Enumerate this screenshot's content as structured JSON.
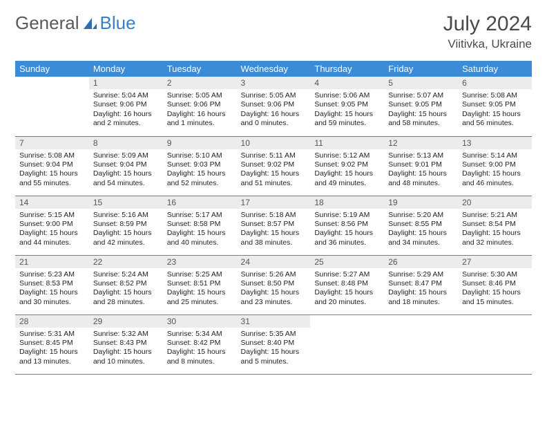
{
  "brand": {
    "part1": "General",
    "part2": "Blue"
  },
  "title": "July 2024",
  "location": "Viitivka, Ukraine",
  "colors": {
    "header_bg": "#3a8bd8",
    "header_fg": "#ffffff",
    "daynum_bg": "#ececec",
    "border": "#3a8bd8",
    "brand_gray": "#5a5a5a",
    "brand_blue": "#3a7fc4"
  },
  "weekdays": [
    "Sunday",
    "Monday",
    "Tuesday",
    "Wednesday",
    "Thursday",
    "Friday",
    "Saturday"
  ],
  "weeks": [
    [
      {
        "blank": true
      },
      {
        "day": "1",
        "sunrise": "Sunrise: 5:04 AM",
        "sunset": "Sunset: 9:06 PM",
        "dl1": "Daylight: 16 hours",
        "dl2": "and 2 minutes."
      },
      {
        "day": "2",
        "sunrise": "Sunrise: 5:05 AM",
        "sunset": "Sunset: 9:06 PM",
        "dl1": "Daylight: 16 hours",
        "dl2": "and 1 minutes."
      },
      {
        "day": "3",
        "sunrise": "Sunrise: 5:05 AM",
        "sunset": "Sunset: 9:06 PM",
        "dl1": "Daylight: 16 hours",
        "dl2": "and 0 minutes."
      },
      {
        "day": "4",
        "sunrise": "Sunrise: 5:06 AM",
        "sunset": "Sunset: 9:05 PM",
        "dl1": "Daylight: 15 hours",
        "dl2": "and 59 minutes."
      },
      {
        "day": "5",
        "sunrise": "Sunrise: 5:07 AM",
        "sunset": "Sunset: 9:05 PM",
        "dl1": "Daylight: 15 hours",
        "dl2": "and 58 minutes."
      },
      {
        "day": "6",
        "sunrise": "Sunrise: 5:08 AM",
        "sunset": "Sunset: 9:05 PM",
        "dl1": "Daylight: 15 hours",
        "dl2": "and 56 minutes."
      }
    ],
    [
      {
        "day": "7",
        "sunrise": "Sunrise: 5:08 AM",
        "sunset": "Sunset: 9:04 PM",
        "dl1": "Daylight: 15 hours",
        "dl2": "and 55 minutes."
      },
      {
        "day": "8",
        "sunrise": "Sunrise: 5:09 AM",
        "sunset": "Sunset: 9:04 PM",
        "dl1": "Daylight: 15 hours",
        "dl2": "and 54 minutes."
      },
      {
        "day": "9",
        "sunrise": "Sunrise: 5:10 AM",
        "sunset": "Sunset: 9:03 PM",
        "dl1": "Daylight: 15 hours",
        "dl2": "and 52 minutes."
      },
      {
        "day": "10",
        "sunrise": "Sunrise: 5:11 AM",
        "sunset": "Sunset: 9:02 PM",
        "dl1": "Daylight: 15 hours",
        "dl2": "and 51 minutes."
      },
      {
        "day": "11",
        "sunrise": "Sunrise: 5:12 AM",
        "sunset": "Sunset: 9:02 PM",
        "dl1": "Daylight: 15 hours",
        "dl2": "and 49 minutes."
      },
      {
        "day": "12",
        "sunrise": "Sunrise: 5:13 AM",
        "sunset": "Sunset: 9:01 PM",
        "dl1": "Daylight: 15 hours",
        "dl2": "and 48 minutes."
      },
      {
        "day": "13",
        "sunrise": "Sunrise: 5:14 AM",
        "sunset": "Sunset: 9:00 PM",
        "dl1": "Daylight: 15 hours",
        "dl2": "and 46 minutes."
      }
    ],
    [
      {
        "day": "14",
        "sunrise": "Sunrise: 5:15 AM",
        "sunset": "Sunset: 9:00 PM",
        "dl1": "Daylight: 15 hours",
        "dl2": "and 44 minutes."
      },
      {
        "day": "15",
        "sunrise": "Sunrise: 5:16 AM",
        "sunset": "Sunset: 8:59 PM",
        "dl1": "Daylight: 15 hours",
        "dl2": "and 42 minutes."
      },
      {
        "day": "16",
        "sunrise": "Sunrise: 5:17 AM",
        "sunset": "Sunset: 8:58 PM",
        "dl1": "Daylight: 15 hours",
        "dl2": "and 40 minutes."
      },
      {
        "day": "17",
        "sunrise": "Sunrise: 5:18 AM",
        "sunset": "Sunset: 8:57 PM",
        "dl1": "Daylight: 15 hours",
        "dl2": "and 38 minutes."
      },
      {
        "day": "18",
        "sunrise": "Sunrise: 5:19 AM",
        "sunset": "Sunset: 8:56 PM",
        "dl1": "Daylight: 15 hours",
        "dl2": "and 36 minutes."
      },
      {
        "day": "19",
        "sunrise": "Sunrise: 5:20 AM",
        "sunset": "Sunset: 8:55 PM",
        "dl1": "Daylight: 15 hours",
        "dl2": "and 34 minutes."
      },
      {
        "day": "20",
        "sunrise": "Sunrise: 5:21 AM",
        "sunset": "Sunset: 8:54 PM",
        "dl1": "Daylight: 15 hours",
        "dl2": "and 32 minutes."
      }
    ],
    [
      {
        "day": "21",
        "sunrise": "Sunrise: 5:23 AM",
        "sunset": "Sunset: 8:53 PM",
        "dl1": "Daylight: 15 hours",
        "dl2": "and 30 minutes."
      },
      {
        "day": "22",
        "sunrise": "Sunrise: 5:24 AM",
        "sunset": "Sunset: 8:52 PM",
        "dl1": "Daylight: 15 hours",
        "dl2": "and 28 minutes."
      },
      {
        "day": "23",
        "sunrise": "Sunrise: 5:25 AM",
        "sunset": "Sunset: 8:51 PM",
        "dl1": "Daylight: 15 hours",
        "dl2": "and 25 minutes."
      },
      {
        "day": "24",
        "sunrise": "Sunrise: 5:26 AM",
        "sunset": "Sunset: 8:50 PM",
        "dl1": "Daylight: 15 hours",
        "dl2": "and 23 minutes."
      },
      {
        "day": "25",
        "sunrise": "Sunrise: 5:27 AM",
        "sunset": "Sunset: 8:48 PM",
        "dl1": "Daylight: 15 hours",
        "dl2": "and 20 minutes."
      },
      {
        "day": "26",
        "sunrise": "Sunrise: 5:29 AM",
        "sunset": "Sunset: 8:47 PM",
        "dl1": "Daylight: 15 hours",
        "dl2": "and 18 minutes."
      },
      {
        "day": "27",
        "sunrise": "Sunrise: 5:30 AM",
        "sunset": "Sunset: 8:46 PM",
        "dl1": "Daylight: 15 hours",
        "dl2": "and 15 minutes."
      }
    ],
    [
      {
        "day": "28",
        "sunrise": "Sunrise: 5:31 AM",
        "sunset": "Sunset: 8:45 PM",
        "dl1": "Daylight: 15 hours",
        "dl2": "and 13 minutes."
      },
      {
        "day": "29",
        "sunrise": "Sunrise: 5:32 AM",
        "sunset": "Sunset: 8:43 PM",
        "dl1": "Daylight: 15 hours",
        "dl2": "and 10 minutes."
      },
      {
        "day": "30",
        "sunrise": "Sunrise: 5:34 AM",
        "sunset": "Sunset: 8:42 PM",
        "dl1": "Daylight: 15 hours",
        "dl2": "and 8 minutes."
      },
      {
        "day": "31",
        "sunrise": "Sunrise: 5:35 AM",
        "sunset": "Sunset: 8:40 PM",
        "dl1": "Daylight: 15 hours",
        "dl2": "and 5 minutes."
      },
      {
        "blank": true
      },
      {
        "blank": true
      },
      {
        "blank": true
      }
    ]
  ]
}
